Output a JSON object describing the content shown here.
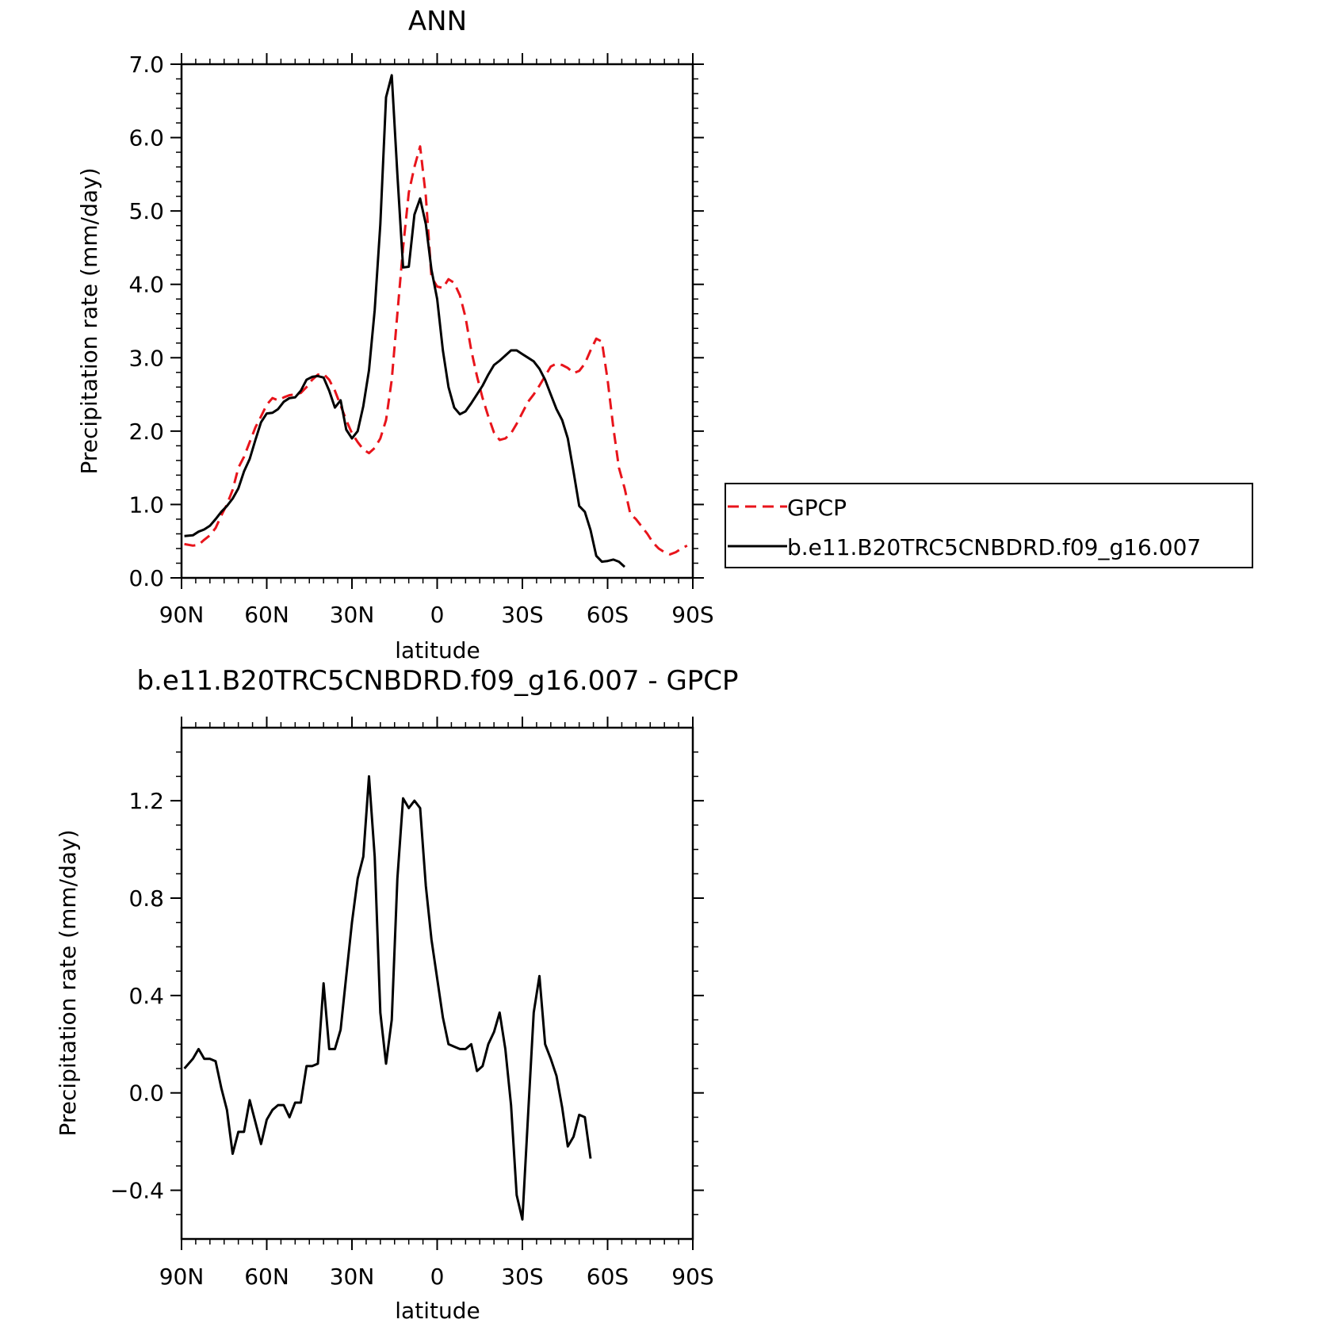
{
  "chart_data": [
    {
      "type": "line",
      "title": "ANN",
      "xlabel": "latitude",
      "ylabel": "Precipitation rate (mm/day)",
      "xlim": [
        90,
        -90
      ],
      "ylim": [
        0,
        7
      ],
      "xticks": [
        {
          "value": 90,
          "label": "90N"
        },
        {
          "value": 60,
          "label": "60N"
        },
        {
          "value": 30,
          "label": "30N"
        },
        {
          "value": 0,
          "label": "0"
        },
        {
          "value": -30,
          "label": "30S"
        },
        {
          "value": -60,
          "label": "60S"
        },
        {
          "value": -90,
          "label": "90S"
        }
      ],
      "yticks": [
        {
          "value": 0,
          "label": "0.0"
        },
        {
          "value": 1,
          "label": "1.0"
        },
        {
          "value": 2,
          "label": "2.0"
        },
        {
          "value": 3,
          "label": "3.0"
        },
        {
          "value": 4,
          "label": "4.0"
        },
        {
          "value": 5,
          "label": "5.0"
        },
        {
          "value": 6,
          "label": "6.0"
        },
        {
          "value": 7,
          "label": "7.0"
        }
      ],
      "legend_position": "right",
      "series": [
        {
          "name": "GPCP",
          "color": "#e8141b",
          "style": "dashed",
          "points": [
            [
              89,
              0.46
            ],
            [
              86,
              0.44
            ],
            [
              84,
              0.45
            ],
            [
              82,
              0.52
            ],
            [
              80,
              0.58
            ],
            [
              78,
              0.68
            ],
            [
              76,
              0.85
            ],
            [
              74,
              1.0
            ],
            [
              72,
              1.2
            ],
            [
              70,
              1.5
            ],
            [
              68,
              1.65
            ],
            [
              66,
              1.85
            ],
            [
              64,
              2.05
            ],
            [
              62,
              2.2
            ],
            [
              60,
              2.36
            ],
            [
              58,
              2.45
            ],
            [
              56,
              2.42
            ],
            [
              54,
              2.46
            ],
            [
              52,
              2.49
            ],
            [
              50,
              2.5
            ],
            [
              48,
              2.52
            ],
            [
              46,
              2.6
            ],
            [
              44,
              2.7
            ],
            [
              42,
              2.77
            ],
            [
              40,
              2.78
            ],
            [
              38,
              2.7
            ],
            [
              36,
              2.55
            ],
            [
              34,
              2.35
            ],
            [
              32,
              2.15
            ],
            [
              30,
              1.97
            ],
            [
              28,
              1.85
            ],
            [
              26,
              1.75
            ],
            [
              24,
              1.7
            ],
            [
              22,
              1.77
            ],
            [
              20,
              1.9
            ],
            [
              18,
              2.15
            ],
            [
              16,
              2.7
            ],
            [
              14,
              3.6
            ],
            [
              12,
              4.5
            ],
            [
              10,
              5.25
            ],
            [
              8,
              5.6
            ],
            [
              6,
              5.88
            ],
            [
              4,
              5.2
            ],
            [
              2,
              4.1
            ],
            [
              0,
              3.97
            ],
            [
              -2,
              3.95
            ],
            [
              -4,
              4.07
            ],
            [
              -6,
              4.02
            ],
            [
              -8,
              3.85
            ],
            [
              -10,
              3.55
            ],
            [
              -12,
              3.1
            ],
            [
              -14,
              2.75
            ],
            [
              -16,
              2.45
            ],
            [
              -18,
              2.2
            ],
            [
              -20,
              1.98
            ],
            [
              -22,
              1.88
            ],
            [
              -24,
              1.9
            ],
            [
              -26,
              1.97
            ],
            [
              -28,
              2.1
            ],
            [
              -30,
              2.25
            ],
            [
              -32,
              2.4
            ],
            [
              -34,
              2.5
            ],
            [
              -36,
              2.62
            ],
            [
              -38,
              2.75
            ],
            [
              -40,
              2.88
            ],
            [
              -42,
              2.92
            ],
            [
              -44,
              2.9
            ],
            [
              -46,
              2.86
            ],
            [
              -48,
              2.79
            ],
            [
              -50,
              2.82
            ],
            [
              -52,
              2.92
            ],
            [
              -54,
              3.1
            ],
            [
              -56,
              3.26
            ],
            [
              -58,
              3.22
            ],
            [
              -60,
              2.7
            ],
            [
              -62,
              2.05
            ],
            [
              -64,
              1.5
            ],
            [
              -66,
              1.22
            ],
            [
              -68,
              0.87
            ],
            [
              -70,
              0.8
            ],
            [
              -72,
              0.7
            ],
            [
              -74,
              0.6
            ],
            [
              -76,
              0.48
            ],
            [
              -78,
              0.4
            ],
            [
              -80,
              0.35
            ],
            [
              -82,
              0.32
            ],
            [
              -84,
              0.35
            ],
            [
              -86,
              0.4
            ],
            [
              -88,
              0.44
            ]
          ]
        },
        {
          "name": "b.e11.B20TRC5CNBDRD.f09_g16.007",
          "color": "#000000",
          "style": "solid",
          "points": [
            [
              89,
              0.57
            ],
            [
              86,
              0.58
            ],
            [
              84,
              0.63
            ],
            [
              82,
              0.66
            ],
            [
              80,
              0.71
            ],
            [
              78,
              0.8
            ],
            [
              76,
              0.9
            ],
            [
              74,
              0.98
            ],
            [
              72,
              1.08
            ],
            [
              70,
              1.22
            ],
            [
              68,
              1.45
            ],
            [
              66,
              1.62
            ],
            [
              64,
              1.88
            ],
            [
              62,
              2.12
            ],
            [
              60,
              2.24
            ],
            [
              58,
              2.25
            ],
            [
              56,
              2.3
            ],
            [
              54,
              2.4
            ],
            [
              52,
              2.45
            ],
            [
              50,
              2.46
            ],
            [
              48,
              2.55
            ],
            [
              46,
              2.7
            ],
            [
              44,
              2.74
            ],
            [
              42,
              2.75
            ],
            [
              40,
              2.73
            ],
            [
              38,
              2.55
            ],
            [
              36,
              2.32
            ],
            [
              34,
              2.42
            ],
            [
              32,
              2.02
            ],
            [
              30,
              1.9
            ],
            [
              28,
              2.0
            ],
            [
              26,
              2.34
            ],
            [
              24,
              2.83
            ],
            [
              22,
              3.65
            ],
            [
              20,
              4.82
            ],
            [
              18,
              6.55
            ],
            [
              16,
              6.85
            ],
            [
              14,
              5.5
            ],
            [
              12,
              4.23
            ],
            [
              10,
              4.24
            ],
            [
              8,
              4.95
            ],
            [
              6,
              5.17
            ],
            [
              4,
              4.82
            ],
            [
              2,
              4.2
            ],
            [
              0,
              3.8
            ],
            [
              -2,
              3.1
            ],
            [
              -4,
              2.6
            ],
            [
              -6,
              2.32
            ],
            [
              -8,
              2.23
            ],
            [
              -10,
              2.27
            ],
            [
              -12,
              2.38
            ],
            [
              -14,
              2.5
            ],
            [
              -16,
              2.62
            ],
            [
              -18,
              2.77
            ],
            [
              -20,
              2.9
            ],
            [
              -22,
              2.96
            ],
            [
              -24,
              3.03
            ],
            [
              -26,
              3.1
            ],
            [
              -28,
              3.1
            ],
            [
              -30,
              3.05
            ],
            [
              -32,
              3.0
            ],
            [
              -34,
              2.95
            ],
            [
              -36,
              2.85
            ],
            [
              -38,
              2.7
            ],
            [
              -40,
              2.5
            ],
            [
              -42,
              2.3
            ],
            [
              -44,
              2.15
            ],
            [
              -46,
              1.9
            ],
            [
              -48,
              1.45
            ],
            [
              -50,
              0.98
            ],
            [
              -52,
              0.9
            ],
            [
              -54,
              0.65
            ],
            [
              -56,
              0.3
            ],
            [
              -58,
              0.22
            ],
            [
              -60,
              0.23
            ],
            [
              -62,
              0.25
            ],
            [
              -64,
              0.22
            ],
            [
              -66,
              0.15
            ]
          ]
        }
      ]
    },
    {
      "type": "line",
      "title": "b.e11.B20TRC5CNBDRD.f09_g16.007 - GPCP",
      "xlabel": "latitude",
      "ylabel": "Precipitation rate (mm/day)",
      "xlim": [
        90,
        -90
      ],
      "ylim": [
        -0.6,
        1.5
      ],
      "xticks": [
        {
          "value": 90,
          "label": "90N"
        },
        {
          "value": 60,
          "label": "60N"
        },
        {
          "value": 30,
          "label": "30N"
        },
        {
          "value": 0,
          "label": "0"
        },
        {
          "value": -30,
          "label": "30S"
        },
        {
          "value": -60,
          "label": "60S"
        },
        {
          "value": -90,
          "label": "90S"
        }
      ],
      "yticks": [
        {
          "value": -0.4,
          "label": "−0.4"
        },
        {
          "value": 0,
          "label": "0.0"
        },
        {
          "value": 0.4,
          "label": "0.4"
        },
        {
          "value": 0.8,
          "label": "0.8"
        },
        {
          "value": 1.2,
          "label": "1.2"
        }
      ],
      "series": [
        {
          "color": "#000000",
          "style": "solid",
          "points": [
            [
              89,
              0.1
            ],
            [
              86,
              0.14
            ],
            [
              84,
              0.18
            ],
            [
              82,
              0.14
            ],
            [
              80,
              0.14
            ],
            [
              78,
              0.13
            ],
            [
              76,
              0.02
            ],
            [
              74,
              -0.07
            ],
            [
              72,
              -0.25
            ],
            [
              70,
              -0.16
            ],
            [
              68,
              -0.16
            ],
            [
              66,
              -0.03
            ],
            [
              64,
              -0.12
            ],
            [
              62,
              -0.21
            ],
            [
              60,
              -0.11
            ],
            [
              58,
              -0.07
            ],
            [
              56,
              -0.05
            ],
            [
              54,
              -0.05
            ],
            [
              52,
              -0.1
            ],
            [
              50,
              -0.04
            ],
            [
              48,
              -0.04
            ],
            [
              46,
              0.11
            ],
            [
              44,
              0.11
            ],
            [
              42,
              0.12
            ],
            [
              40,
              0.45
            ],
            [
              38,
              0.18
            ],
            [
              36,
              0.18
            ],
            [
              34,
              0.26
            ],
            [
              32,
              0.48
            ],
            [
              30,
              0.7
            ],
            [
              28,
              0.88
            ],
            [
              26,
              0.97
            ],
            [
              24,
              1.3
            ],
            [
              22,
              0.97
            ],
            [
              20,
              0.33
            ],
            [
              18,
              0.12
            ],
            [
              16,
              0.3
            ],
            [
              14,
              0.88
            ],
            [
              12,
              1.21
            ],
            [
              10,
              1.17
            ],
            [
              8,
              1.2
            ],
            [
              6,
              1.17
            ],
            [
              4,
              0.85
            ],
            [
              2,
              0.63
            ],
            [
              0,
              0.47
            ],
            [
              -2,
              0.31
            ],
            [
              -4,
              0.2
            ],
            [
              -6,
              0.19
            ],
            [
              -8,
              0.18
            ],
            [
              -10,
              0.18
            ],
            [
              -12,
              0.2
            ],
            [
              -14,
              0.09
            ],
            [
              -16,
              0.11
            ],
            [
              -18,
              0.2
            ],
            [
              -20,
              0.25
            ],
            [
              -22,
              0.33
            ],
            [
              -24,
              0.18
            ],
            [
              -26,
              -0.05
            ],
            [
              -28,
              -0.42
            ],
            [
              -30,
              -0.52
            ],
            [
              -32,
              -0.09
            ],
            [
              -34,
              0.33
            ],
            [
              -36,
              0.48
            ],
            [
              -38,
              0.2
            ],
            [
              -40,
              0.14
            ],
            [
              -42,
              0.07
            ],
            [
              -44,
              -0.06
            ],
            [
              -46,
              -0.22
            ],
            [
              -48,
              -0.18
            ],
            [
              -50,
              -0.09
            ],
            [
              -52,
              -0.1
            ],
            [
              -54,
              -0.27
            ]
          ]
        }
      ]
    }
  ]
}
